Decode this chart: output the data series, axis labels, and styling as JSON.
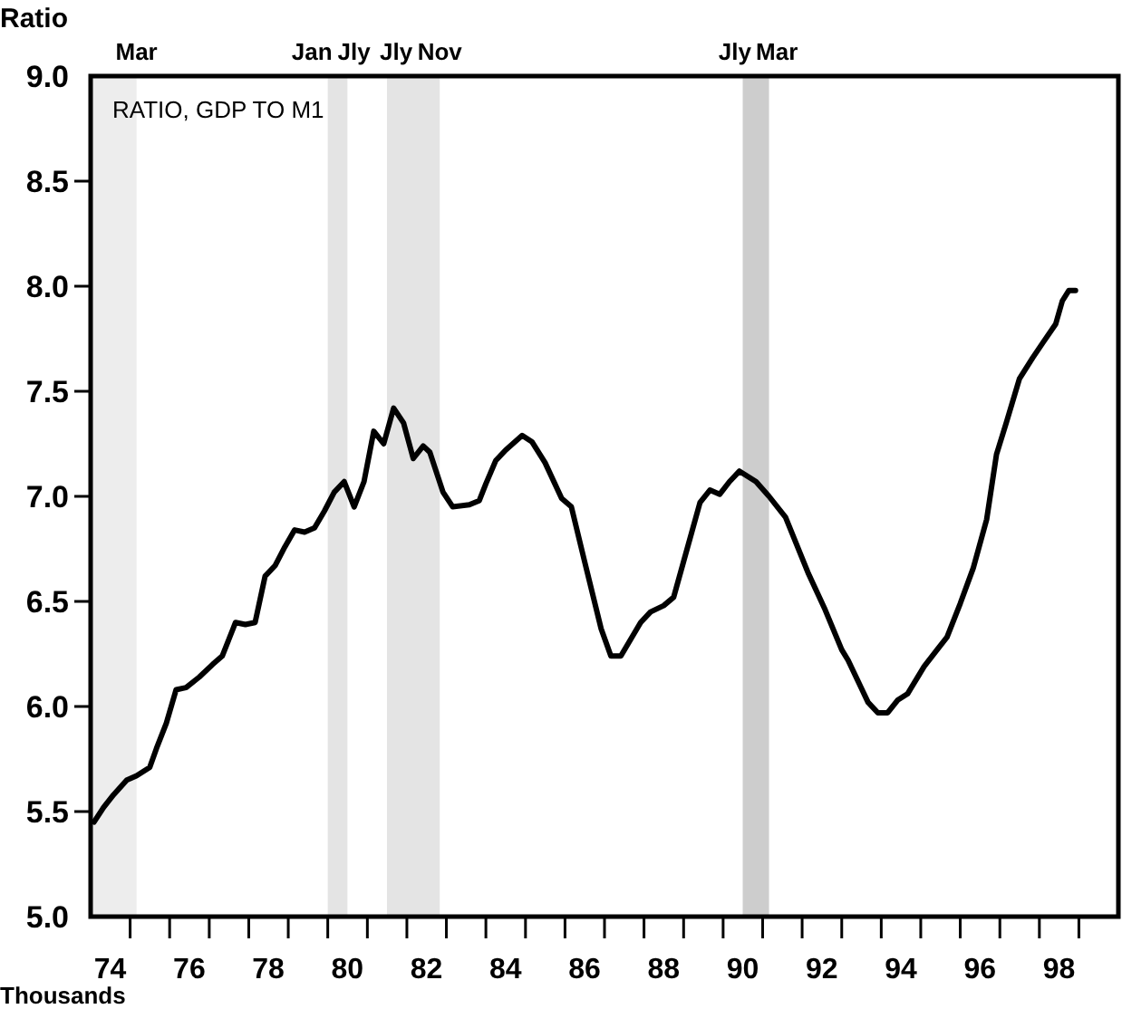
{
  "chart_data": {
    "type": "line",
    "title": "RATIO, GDP TO M1",
    "ylabel": "Ratio",
    "color": "#000000",
    "line_style": "solid",
    "x": [
      "1974-02",
      "1974-05",
      "1974-08",
      "1974-12",
      "1975-03",
      "1975-07",
      "1975-09",
      "1975-12",
      "1976-03",
      "1976-06",
      "1976-10",
      "1977-02",
      "1977-05",
      "1977-09",
      "1977-12",
      "1978-03",
      "1978-06",
      "1978-09",
      "1978-12",
      "1979-03",
      "1979-06",
      "1979-09",
      "1979-12",
      "1980-03",
      "1980-06",
      "1980-09",
      "1980-12",
      "1981-03",
      "1981-06",
      "1981-09",
      "1981-12",
      "1982-03",
      "1982-06",
      "1982-08",
      "1982-12",
      "1983-03",
      "1983-08",
      "1983-11",
      "1984-01",
      "1984-04",
      "1984-07",
      "1984-12",
      "1985-03",
      "1985-07",
      "1985-12",
      "1986-03",
      "1986-07",
      "1986-12",
      "1987-03",
      "1987-06",
      "1987-12",
      "1988-03",
      "1988-07",
      "1988-10",
      "1989-01",
      "1989-06",
      "1989-09",
      "1989-12",
      "1990-03",
      "1990-06",
      "1990-11",
      "1991-03",
      "1991-08",
      "1992-03",
      "1992-08",
      "1993-01",
      "1993-03",
      "1993-09",
      "1993-12",
      "1994-03",
      "1994-06",
      "1994-09",
      "1995-02",
      "1995-06",
      "1995-09",
      "1996-01",
      "1996-05",
      "1996-09",
      "1996-12",
      "1997-03",
      "1997-07",
      "1997-11",
      "1998-02",
      "1998-06",
      "1998-08",
      "1998-10",
      "1998-12"
    ],
    "values": [
      5.45,
      5.52,
      5.58,
      5.65,
      5.67,
      5.71,
      5.8,
      5.92,
      6.08,
      6.09,
      6.14,
      6.2,
      6.24,
      6.4,
      6.39,
      6.4,
      6.62,
      6.67,
      6.76,
      6.84,
      6.83,
      6.85,
      6.93,
      7.02,
      7.07,
      6.95,
      7.07,
      7.31,
      7.25,
      7.42,
      7.35,
      7.18,
      7.24,
      7.21,
      7.02,
      6.95,
      6.96,
      6.98,
      7.06,
      7.17,
      7.22,
      7.29,
      7.26,
      7.16,
      6.99,
      6.95,
      6.69,
      6.37,
      6.24,
      6.24,
      6.4,
      6.45,
      6.48,
      6.52,
      6.69,
      6.97,
      7.03,
      7.01,
      7.07,
      7.12,
      7.07,
      7.0,
      6.9,
      6.63,
      6.46,
      6.27,
      6.22,
      6.02,
      5.97,
      5.97,
      6.03,
      6.06,
      6.19,
      6.27,
      6.33,
      6.49,
      6.66,
      6.89,
      7.2,
      7.35,
      7.56,
      7.66,
      7.73,
      7.82,
      7.93,
      7.98,
      7.98
    ],
    "xlim": [
      "1974",
      "2000"
    ],
    "ylim": [
      5,
      9
    ],
    "xticks": [
      {
        "value": "1974-07",
        "label": "74"
      },
      {
        "value": "1975",
        "label": null
      },
      {
        "value": "1976",
        "label": null
      },
      {
        "value": "1976-07",
        "label": "76"
      },
      {
        "value": "1977",
        "label": null
      },
      {
        "value": "1978",
        "label": null
      },
      {
        "value": "1978-07",
        "label": "78"
      },
      {
        "value": "1979",
        "label": null
      },
      {
        "value": "1980",
        "label": null
      },
      {
        "value": "1980-07",
        "label": "80"
      },
      {
        "value": "1981",
        "label": null
      },
      {
        "value": "1982",
        "label": null
      },
      {
        "value": "1982-07",
        "label": "82"
      },
      {
        "value": "1983",
        "label": null
      },
      {
        "value": "1984",
        "label": null
      },
      {
        "value": "1984-07",
        "label": "84"
      },
      {
        "value": "1985",
        "label": null
      },
      {
        "value": "1986",
        "label": null
      },
      {
        "value": "1986-07",
        "label": "86"
      },
      {
        "value": "1987",
        "label": null
      },
      {
        "value": "1988",
        "label": null
      },
      {
        "value": "1988-07",
        "label": "88"
      },
      {
        "value": "1989",
        "label": null
      },
      {
        "value": "1990",
        "label": null
      },
      {
        "value": "1990-07",
        "label": "90"
      },
      {
        "value": "1991",
        "label": null
      },
      {
        "value": "1992",
        "label": null
      },
      {
        "value": "1992-07",
        "label": "92"
      },
      {
        "value": "1993",
        "label": null
      },
      {
        "value": "1994",
        "label": null
      },
      {
        "value": "1994-07",
        "label": "94"
      },
      {
        "value": "1995",
        "label": null
      },
      {
        "value": "1996",
        "label": null
      },
      {
        "value": "1996-07",
        "label": "96"
      },
      {
        "value": "1997",
        "label": null
      },
      {
        "value": "1998",
        "label": null
      },
      {
        "value": "1998-07",
        "label": "98"
      },
      {
        "value": "1999",
        "label": null
      }
    ],
    "yticks": [
      {
        "value": 5,
        "label": "5.0"
      },
      5.5,
      {
        "value": 6,
        "label": "6.0"
      },
      6.5,
      {
        "value": 7,
        "label": "7.0"
      },
      7.5,
      {
        "value": 8,
        "label": "8.0"
      },
      8.5,
      {
        "value": 9,
        "label": "9.0"
      }
    ],
    "bands": [
      {
        "axis": "x",
        "from": "1974",
        "to": "1975-03",
        "color": "#ededed"
      },
      {
        "axis": "x",
        "from": "1980-01",
        "to": "1980-07",
        "color": "#e4e4e4"
      },
      {
        "axis": "x",
        "from": "1981-07",
        "to": "1982-11",
        "color": "#e4e4e4"
      },
      {
        "axis": "x",
        "from": "1990-07",
        "to": "1991-03",
        "color": "#cdcdcd"
      }
    ],
    "annotations": [
      {
        "text": "Mar",
        "x": "1975-03",
        "y": 9
      },
      {
        "text": "Jan",
        "x": "1980-01",
        "y": 9
      },
      {
        "text": "Jly",
        "x": "1980-07",
        "y": 9
      },
      {
        "text": "Jly",
        "x": "1981-07",
        "y": 9
      },
      {
        "text": "Nov",
        "x": "1982-11",
        "y": 9
      },
      {
        "text": "Jly",
        "x": "1990-07",
        "y": 9
      },
      {
        "text": "Mar",
        "x": "1991-03",
        "y": 9
      },
      "Thousands"
    ]
  }
}
